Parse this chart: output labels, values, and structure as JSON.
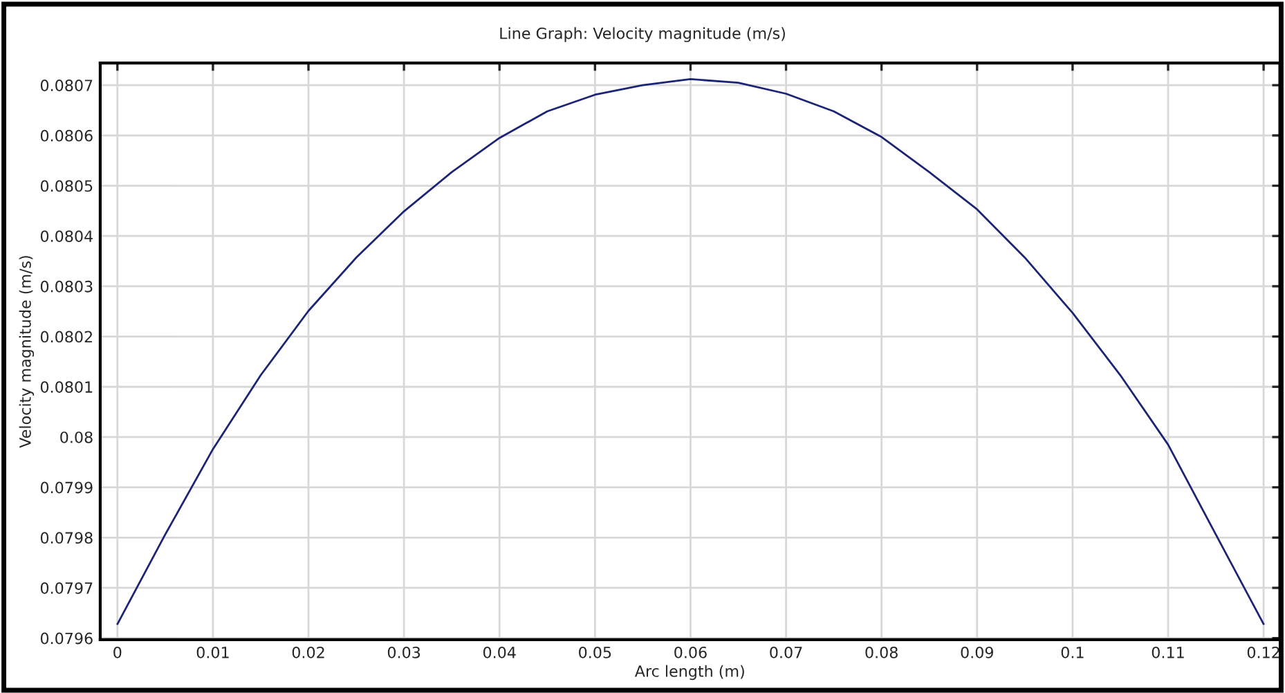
{
  "chart_data": {
    "type": "line",
    "title": "Line Graph: Velocity magnitude (m/s)",
    "xlabel": "Arc length (m)",
    "ylabel": "Velocity magnitude (m/s)",
    "x": [
      0,
      0.005,
      0.01,
      0.015,
      0.02,
      0.025,
      0.03,
      0.035,
      0.04,
      0.045,
      0.05,
      0.055,
      0.06,
      0.065,
      0.07,
      0.075,
      0.08,
      0.085,
      0.09,
      0.095,
      0.1,
      0.105,
      0.11,
      0.115,
      0.12
    ],
    "series": [
      {
        "color": "#1c2476",
        "values": [
          0.079628,
          0.079806,
          0.079976,
          0.080123,
          0.080251,
          0.080357,
          0.080449,
          0.080527,
          0.080595,
          0.080648,
          0.080681,
          0.0807,
          0.080712,
          0.080705,
          0.080683,
          0.080648,
          0.080597,
          0.080527,
          0.080453,
          0.080357,
          0.080247,
          0.080123,
          0.079985,
          0.079806,
          0.079628
        ]
      }
    ],
    "xlim": [
      -0.0018,
      0.1217
    ],
    "ylim": [
      0.079597,
      0.080744
    ],
    "xticks": [
      0,
      0.01,
      0.02,
      0.03,
      0.04,
      0.05,
      0.06,
      0.07,
      0.08,
      0.09,
      0.1,
      0.11,
      0.12
    ],
    "yticks": [
      0.0796,
      0.0797,
      0.0798,
      0.0799,
      0.08,
      0.0801,
      0.0802,
      0.0803,
      0.0804,
      0.0805,
      0.0806,
      0.0807
    ],
    "grid": true,
    "marker": "none",
    "line_style": "solid"
  }
}
